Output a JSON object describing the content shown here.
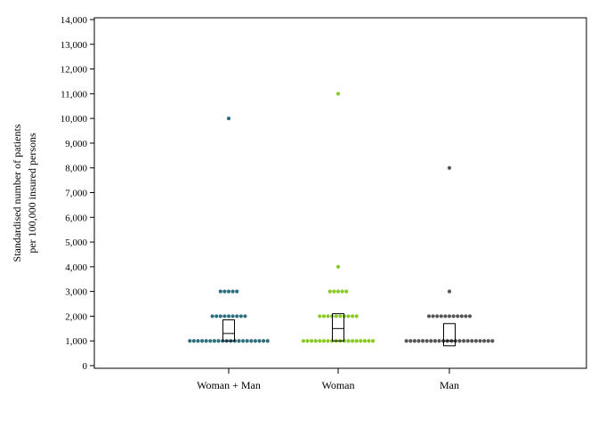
{
  "chart_data": {
    "type": "scatter",
    "subtype": "dot-plot-with-boxes",
    "ylabel_lines": [
      "Standardised number of patients",
      "per 100,000 insured persons"
    ],
    "ylim": [
      0,
      14000
    ],
    "yticks": [
      0,
      1000,
      2000,
      3000,
      4000,
      5000,
      6000,
      7000,
      8000,
      9000,
      10000,
      11000,
      12000,
      13000,
      14000
    ],
    "ytick_labels": [
      "0",
      "1,000",
      "2,000",
      "3,000",
      "4,000",
      "5,000",
      "6,000",
      "7,000",
      "8,000",
      "9,000",
      "10,000",
      "11,000",
      "12,000",
      "13,000",
      "14,000"
    ],
    "grid": false,
    "categories": [
      "Woman + Man",
      "Woman",
      "Man"
    ],
    "series": [
      {
        "category": "Woman + Man",
        "color": "#2e6f7e",
        "dot_counts": [
          {
            "value": 1000,
            "count": 20
          },
          {
            "value": 2000,
            "count": 9
          },
          {
            "value": 3000,
            "count": 5
          },
          {
            "value": 10000,
            "count": 1
          }
        ],
        "box": {
          "q1": 1000,
          "median": 1300,
          "q3": 1850
        }
      },
      {
        "category": "Woman",
        "color": "#8ac926",
        "dot_counts": [
          {
            "value": 1000,
            "count": 18
          },
          {
            "value": 2000,
            "count": 10
          },
          {
            "value": 3000,
            "count": 5
          },
          {
            "value": 4000,
            "count": 1
          },
          {
            "value": 11000,
            "count": 1
          }
        ],
        "box": {
          "q1": 1000,
          "median": 1500,
          "q3": 2100
        }
      },
      {
        "category": "Man",
        "color": "#555555",
        "dot_counts": [
          {
            "value": 1000,
            "count": 22
          },
          {
            "value": 2000,
            "count": 11
          },
          {
            "value": 3000,
            "count": 1
          },
          {
            "value": 8000,
            "count": 1
          }
        ],
        "box": {
          "q1": 800,
          "median": 1000,
          "q3": 1700
        }
      }
    ]
  }
}
